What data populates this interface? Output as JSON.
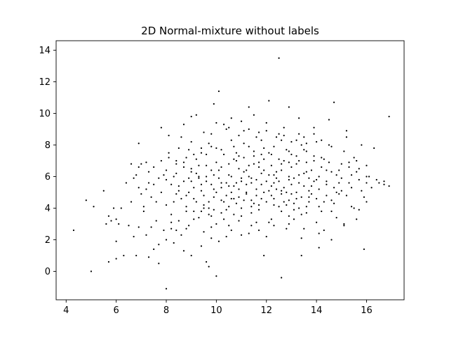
{
  "chart_data": {
    "type": "scatter",
    "title": "2D Normal-mixture without labels",
    "xlabel": "",
    "ylabel": "",
    "xlim": [
      3.6,
      17.5
    ],
    "ylim": [
      -1.8,
      14.6
    ],
    "xticks": [
      4,
      6,
      8,
      10,
      12,
      14,
      16
    ],
    "yticks": [
      0,
      2,
      4,
      6,
      8,
      10,
      12,
      14
    ],
    "grid": false,
    "legend": "none",
    "marker_color": "#000000",
    "points": [
      [
        4.3,
        2.6
      ],
      [
        4.8,
        4.5
      ],
      [
        5.1,
        4.1
      ],
      [
        5.0,
        0.0
      ],
      [
        5.5,
        5.1
      ],
      [
        5.6,
        3.0
      ],
      [
        5.7,
        3.5
      ],
      [
        5.8,
        3.2
      ],
      [
        5.9,
        4.0
      ],
      [
        6.0,
        3.3
      ],
      [
        6.0,
        1.9
      ],
      [
        6.1,
        3.0
      ],
      [
        6.2,
        4.0
      ],
      [
        5.7,
        0.6
      ],
      [
        6.0,
        0.8
      ],
      [
        6.3,
        1.0
      ],
      [
        6.5,
        2.9
      ],
      [
        6.6,
        6.8
      ],
      [
        6.7,
        2.2
      ],
      [
        6.8,
        1.0
      ],
      [
        6.9,
        8.1
      ],
      [
        7.0,
        6.8
      ],
      [
        7.0,
        4.9
      ],
      [
        7.1,
        4.1
      ],
      [
        7.2,
        2.3
      ],
      [
        7.3,
        6.3
      ],
      [
        7.4,
        2.8
      ],
      [
        7.5,
        5.5
      ],
      [
        7.6,
        4.4
      ],
      [
        7.7,
        1.7
      ],
      [
        7.8,
        9.1
      ],
      [
        7.9,
        6.1
      ],
      [
        8.0,
        5.8
      ],
      [
        8.0,
        2.0
      ],
      [
        8.0,
        -1.1
      ],
      [
        8.1,
        7.2
      ],
      [
        8.2,
        2.7
      ],
      [
        8.3,
        4.4
      ],
      [
        8.4,
        6.8
      ],
      [
        8.5,
        3.2
      ],
      [
        8.6,
        8.5
      ],
      [
        8.7,
        9.3
      ],
      [
        8.8,
        2.7
      ],
      [
        8.9,
        5.0
      ],
      [
        9.0,
        6.3
      ],
      [
        9.1,
        4.6
      ],
      [
        9.2,
        7.1
      ],
      [
        9.3,
        3.4
      ],
      [
        9.4,
        5.5
      ],
      [
        9.5,
        2.5
      ],
      [
        9.6,
        6.7
      ],
      [
        9.7,
        4.0
      ],
      [
        9.8,
        8.7
      ],
      [
        9.9,
        5.2
      ],
      [
        10.0,
        3.0
      ],
      [
        10.1,
        11.4
      ],
      [
        10.2,
        6.6
      ],
      [
        10.3,
        4.4
      ],
      [
        10.4,
        9.0
      ],
      [
        10.5,
        2.9
      ],
      [
        10.6,
        6.0
      ],
      [
        10.7,
        3.6
      ],
      [
        10.8,
        7.5
      ],
      [
        10.9,
        5.2
      ],
      [
        11.0,
        4.0
      ],
      [
        11.1,
        8.1
      ],
      [
        11.2,
        6.4
      ],
      [
        11.3,
        2.4
      ],
      [
        11.4,
        5.6
      ],
      [
        11.5,
        9.9
      ],
      [
        11.6,
        3.1
      ],
      [
        11.7,
        6.9
      ],
      [
        11.8,
        4.6
      ],
      [
        11.9,
        7.8
      ],
      [
        12.0,
        5.7
      ],
      [
        12.1,
        10.8
      ],
      [
        12.2,
        3.3
      ],
      [
        12.3,
        6.1
      ],
      [
        12.4,
        8.5
      ],
      [
        12.5,
        13.5
      ],
      [
        12.6,
        4.9
      ],
      [
        12.7,
        7.0
      ],
      [
        12.8,
        2.7
      ],
      [
        12.9,
        5.8
      ],
      [
        13.0,
        8.2
      ],
      [
        13.1,
        4.3
      ],
      [
        13.2,
        6.8
      ],
      [
        13.3,
        9.7
      ],
      [
        13.4,
        3.6
      ],
      [
        13.5,
        5.4
      ],
      [
        13.6,
        7.6
      ],
      [
        13.7,
        4.7
      ],
      [
        13.8,
        6.4
      ],
      [
        13.9,
        9.1
      ],
      [
        14.0,
        3.1
      ],
      [
        14.1,
        6.0
      ],
      [
        14.2,
        7.2
      ],
      [
        14.3,
        4.4
      ],
      [
        14.4,
        5.5
      ],
      [
        14.5,
        8.0
      ],
      [
        14.6,
        3.8
      ],
      [
        14.7,
        10.7
      ],
      [
        14.8,
        6.1
      ],
      [
        14.9,
        4.9
      ],
      [
        15.0,
        6.8
      ],
      [
        15.1,
        3.0
      ],
      [
        15.2,
        8.9
      ],
      [
        15.3,
        5.6
      ],
      [
        15.4,
        4.1
      ],
      [
        15.5,
        7.2
      ],
      [
        15.6,
        6.3
      ],
      [
        15.7,
        3.9
      ],
      [
        15.8,
        8.0
      ],
      [
        15.9,
        4.7
      ],
      [
        15.9,
        1.4
      ],
      [
        16.0,
        6.0
      ],
      [
        16.3,
        7.8
      ],
      [
        16.5,
        5.6
      ],
      [
        16.7,
        5.7
      ],
      [
        16.9,
        9.8
      ],
      [
        16.9,
        5.4
      ],
      [
        16.0,
        5.6
      ],
      [
        15.8,
        5.1
      ],
      [
        15.5,
        4.0
      ],
      [
        15.3,
        6.6
      ],
      [
        15.0,
        5.9
      ],
      [
        14.8,
        5.0
      ],
      [
        14.6,
        4.5
      ],
      [
        14.4,
        6.4
      ],
      [
        14.3,
        2.6
      ],
      [
        14.2,
        8.3
      ],
      [
        14.1,
        4.1
      ],
      [
        13.9,
        7.3
      ],
      [
        13.8,
        4.9
      ],
      [
        13.7,
        5.9
      ],
      [
        13.5,
        6.2
      ],
      [
        13.4,
        2.1
      ],
      [
        13.3,
        7.0
      ],
      [
        13.2,
        5.0
      ],
      [
        13.1,
        3.3
      ],
      [
        13.0,
        6.6
      ],
      [
        12.9,
        4.5
      ],
      [
        12.8,
        7.7
      ],
      [
        12.7,
        5.3
      ],
      [
        12.6,
        3.8
      ],
      [
        12.5,
        8.7
      ],
      [
        12.4,
        6.3
      ],
      [
        12.3,
        4.2
      ],
      [
        12.2,
        7.4
      ],
      [
        12.1,
        5.1
      ],
      [
        12.0,
        2.2
      ],
      [
        11.9,
        6.4
      ],
      [
        11.8,
        8.3
      ],
      [
        11.7,
        4.2
      ],
      [
        11.6,
        5.8
      ],
      [
        11.5,
        7.3
      ],
      [
        11.4,
        3.7
      ],
      [
        11.3,
        6.7
      ],
      [
        11.2,
        4.9
      ],
      [
        11.1,
        8.9
      ],
      [
        11.0,
        5.9
      ],
      [
        10.9,
        3.2
      ],
      [
        10.8,
        7.0
      ],
      [
        10.7,
        4.6
      ],
      [
        10.6,
        8.3
      ],
      [
        10.5,
        5.4
      ],
      [
        10.4,
        3.9
      ],
      [
        10.3,
        9.3
      ],
      [
        10.2,
        5.3
      ],
      [
        10.1,
        1.9
      ],
      [
        10.0,
        6.9
      ],
      [
        9.9,
        4.7
      ],
      [
        9.8,
        7.9
      ],
      [
        9.7,
        3.6
      ],
      [
        9.6,
        6.0
      ],
      [
        9.5,
        4.2
      ],
      [
        9.4,
        7.5
      ],
      [
        9.3,
        5.9
      ],
      [
        9.2,
        9.9
      ],
      [
        9.1,
        3.8
      ],
      [
        9.0,
        5.7
      ],
      [
        8.9,
        7.7
      ],
      [
        8.8,
        4.1
      ],
      [
        8.7,
        6.6
      ],
      [
        8.6,
        2.3
      ],
      [
        8.5,
        5.4
      ],
      [
        8.4,
        4.9
      ],
      [
        8.3,
        6.0
      ],
      [
        8.2,
        3.6
      ],
      [
        8.1,
        8.6
      ],
      [
        8.0,
        4.2
      ],
      [
        7.9,
        2.6
      ],
      [
        7.8,
        5.0
      ],
      [
        7.7,
        0.5
      ],
      [
        7.6,
        3.2
      ],
      [
        7.5,
        1.4
      ],
      [
        7.4,
        4.7
      ],
      [
        7.3,
        0.9
      ],
      [
        7.2,
        5.2
      ],
      [
        7.1,
        3.8
      ],
      [
        6.9,
        2.8
      ],
      [
        6.8,
        6.1
      ],
      [
        6.6,
        4.4
      ],
      [
        6.4,
        5.6
      ],
      [
        9.6,
        0.6
      ],
      [
        9.7,
        0.3
      ],
      [
        10.0,
        -0.3
      ],
      [
        12.6,
        -0.4
      ],
      [
        11.9,
        1.0
      ],
      [
        13.4,
        1.0
      ],
      [
        14.1,
        1.5
      ],
      [
        12.9,
        10.4
      ],
      [
        11.3,
        10.4
      ],
      [
        10.5,
        9.1
      ],
      [
        9.9,
        10.6
      ],
      [
        9.0,
        9.8
      ],
      [
        13.5,
        8.5
      ],
      [
        13.9,
        8.7
      ],
      [
        14.5,
        9.6
      ],
      [
        15.2,
        8.5
      ],
      [
        12.0,
        9.4
      ],
      [
        11.6,
        8.5
      ],
      [
        12.7,
        9.1
      ],
      [
        11.0,
        9.5
      ],
      [
        12.3,
        5.6
      ],
      [
        12.4,
        5.9
      ],
      [
        11.8,
        6.2
      ],
      [
        11.6,
        5.2
      ],
      [
        12.2,
        4.8
      ],
      [
        11.4,
        4.5
      ],
      [
        12.8,
        5.0
      ],
      [
        13.0,
        5.5
      ],
      [
        13.3,
        6.1
      ],
      [
        12.6,
        6.8
      ],
      [
        11.9,
        7.1
      ],
      [
        11.1,
        6.3
      ],
      [
        10.8,
        5.6
      ],
      [
        10.4,
        4.8
      ],
      [
        10.1,
        5.9
      ],
      [
        9.8,
        6.4
      ],
      [
        10.7,
        7.9
      ],
      [
        11.5,
        7.6
      ],
      [
        12.3,
        7.9
      ],
      [
        13.0,
        7.4
      ],
      [
        13.6,
        6.9
      ],
      [
        14.0,
        5.8
      ],
      [
        13.7,
        5.1
      ],
      [
        13.2,
        4.6
      ],
      [
        12.5,
        4.1
      ],
      [
        11.7,
        3.9
      ],
      [
        11.0,
        3.5
      ],
      [
        10.3,
        3.3
      ],
      [
        9.9,
        3.9
      ],
      [
        9.5,
        4.8
      ],
      [
        9.3,
        6.7
      ],
      [
        9.6,
        7.4
      ],
      [
        10.2,
        7.7
      ],
      [
        10.9,
        8.6
      ],
      [
        11.7,
        8.8
      ],
      [
        12.6,
        8.3
      ],
      [
        13.4,
        8.0
      ],
      [
        14.3,
        7.1
      ],
      [
        14.6,
        6.3
      ],
      [
        14.7,
        4.3
      ],
      [
        14.2,
        3.8
      ],
      [
        13.6,
        3.7
      ],
      [
        12.9,
        3.5
      ],
      [
        12.1,
        3.1
      ],
      [
        11.4,
        2.9
      ],
      [
        10.6,
        2.6
      ],
      [
        9.8,
        2.8
      ],
      [
        9.1,
        3.3
      ],
      [
        8.8,
        3.8
      ],
      [
        8.6,
        4.6
      ],
      [
        8.9,
        5.9
      ],
      [
        9.2,
        6.2
      ],
      [
        10.0,
        5.0
      ],
      [
        10.6,
        5.0
      ],
      [
        11.2,
        5.5
      ],
      [
        11.8,
        5.5
      ],
      [
        12.4,
        5.2
      ],
      [
        13.1,
        5.9
      ],
      [
        13.8,
        5.4
      ],
      [
        14.4,
        4.8
      ],
      [
        14.9,
        5.6
      ],
      [
        15.4,
        6.1
      ],
      [
        15.7,
        5.8
      ],
      [
        15.2,
        4.8
      ],
      [
        14.8,
        3.4
      ],
      [
        14.0,
        4.6
      ],
      [
        13.3,
        4.0
      ],
      [
        12.7,
        4.4
      ],
      [
        12.0,
        4.4
      ],
      [
        11.4,
        4.1
      ],
      [
        10.8,
        4.3
      ],
      [
        10.2,
        4.5
      ],
      [
        9.7,
        4.4
      ],
      [
        9.4,
        3.8
      ],
      [
        8.9,
        2.9
      ],
      [
        8.4,
        2.6
      ],
      [
        8.2,
        3.1
      ],
      [
        8.3,
        1.8
      ],
      [
        8.7,
        1.3
      ],
      [
        9.0,
        1.0
      ],
      [
        9.4,
        1.6
      ],
      [
        9.8,
        2.1
      ],
      [
        10.4,
        2.2
      ],
      [
        11.0,
        2.3
      ],
      [
        11.7,
        2.6
      ],
      [
        12.3,
        2.9
      ],
      [
        12.9,
        3.0
      ],
      [
        13.5,
        2.7
      ],
      [
        14.1,
        2.4
      ],
      [
        14.6,
        2.0
      ],
      [
        15.1,
        2.9
      ],
      [
        15.6,
        3.3
      ],
      [
        16.0,
        4.4
      ],
      [
        16.2,
        5.3
      ],
      [
        16.0,
        6.7
      ],
      [
        15.6,
        7.0
      ],
      [
        15.1,
        7.6
      ],
      [
        14.6,
        7.9
      ],
      [
        14.0,
        8.2
      ],
      [
        13.3,
        8.7
      ],
      [
        12.7,
        8.6
      ],
      [
        12.0,
        8.9
      ],
      [
        11.3,
        9.0
      ],
      [
        10.6,
        9.7
      ],
      [
        10.0,
        9.4
      ],
      [
        9.5,
        8.8
      ],
      [
        9.0,
        8.2
      ],
      [
        8.5,
        7.8
      ],
      [
        8.1,
        7.5
      ],
      [
        7.8,
        7.0
      ],
      [
        7.5,
        6.6
      ],
      [
        7.2,
        6.9
      ],
      [
        6.9,
        6.6
      ],
      [
        6.7,
        5.9
      ],
      [
        6.9,
        5.3
      ],
      [
        7.3,
        5.6
      ],
      [
        7.7,
        5.9
      ],
      [
        8.0,
        6.4
      ],
      [
        8.4,
        6.2
      ],
      [
        8.7,
        5.7
      ],
      [
        9.1,
        5.3
      ],
      [
        9.4,
        5.1
      ],
      [
        9.8,
        5.5
      ],
      [
        10.1,
        6.4
      ],
      [
        10.5,
        6.8
      ],
      [
        10.9,
        7.3
      ],
      [
        11.3,
        7.9
      ],
      [
        11.8,
        7.4
      ],
      [
        12.2,
        6.7
      ],
      [
        12.6,
        6.4
      ],
      [
        12.9,
        6.9
      ],
      [
        13.2,
        7.3
      ],
      [
        13.5,
        7.7
      ],
      [
        13.9,
        7.0
      ],
      [
        14.2,
        6.6
      ],
      [
        14.5,
        6.9
      ],
      [
        14.9,
        6.4
      ],
      [
        15.3,
        6.9
      ],
      [
        15.7,
        6.5
      ],
      [
        16.1,
        6.0
      ],
      [
        16.4,
        5.8
      ],
      [
        16.7,
        5.5
      ],
      [
        13.9,
        5.7
      ],
      [
        13.6,
        6.3
      ],
      [
        13.3,
        5.6
      ],
      [
        12.9,
        6.0
      ],
      [
        12.5,
        5.7
      ],
      [
        12.1,
        6.1
      ],
      [
        11.7,
        6.6
      ],
      [
        11.3,
        6.0
      ],
      [
        10.9,
        6.5
      ],
      [
        10.5,
        6.1
      ],
      [
        10.2,
        5.6
      ],
      [
        9.9,
        6.1
      ],
      [
        9.6,
        5.7
      ],
      [
        9.3,
        6.0
      ],
      [
        9.0,
        6.5
      ],
      [
        8.7,
        6.9
      ],
      [
        8.4,
        7.0
      ],
      [
        8.2,
        5.5
      ],
      [
        8.5,
        5.1
      ],
      [
        8.8,
        4.8
      ],
      [
        9.2,
        4.4
      ],
      [
        9.5,
        4.0
      ],
      [
        9.8,
        3.5
      ],
      [
        10.2,
        3.7
      ],
      [
        10.5,
        4.1
      ],
      [
        10.9,
        4.7
      ],
      [
        11.2,
        5.0
      ],
      [
        11.6,
        4.8
      ],
      [
        11.9,
        5.0
      ],
      [
        12.3,
        4.6
      ],
      [
        12.6,
        5.1
      ],
      [
        13.0,
        4.9
      ],
      [
        13.4,
        4.7
      ],
      [
        13.7,
        4.4
      ],
      [
        14.1,
        5.2
      ],
      [
        14.4,
        5.7
      ],
      [
        14.7,
        5.3
      ],
      [
        15.0,
        5.1
      ],
      [
        15.4,
        5.3
      ],
      [
        12.1,
        7.5
      ],
      [
        12.5,
        7.1
      ],
      [
        12.9,
        7.6
      ],
      [
        13.2,
        8.3
      ],
      [
        13.6,
        8.1
      ],
      [
        11.5,
        6.8
      ],
      [
        11.1,
        7.2
      ],
      [
        10.7,
        7.1
      ],
      [
        10.3,
        7.4
      ],
      [
        10.0,
        7.8
      ],
      [
        9.7,
        8.1
      ],
      [
        9.4,
        7.8
      ],
      [
        9.1,
        7.4
      ],
      [
        8.8,
        7.2
      ],
      [
        11.4,
        5.9
      ],
      [
        11.0,
        5.7
      ],
      [
        10.7,
        5.4
      ],
      [
        10.4,
        5.6
      ],
      [
        12.2,
        5.4
      ],
      [
        11.5,
        4.3
      ],
      [
        11.1,
        4.5
      ],
      [
        10.6,
        4.6
      ],
      [
        12.8,
        4.2
      ],
      [
        13.1,
        3.9
      ],
      [
        13.6,
        4.1
      ]
    ]
  }
}
